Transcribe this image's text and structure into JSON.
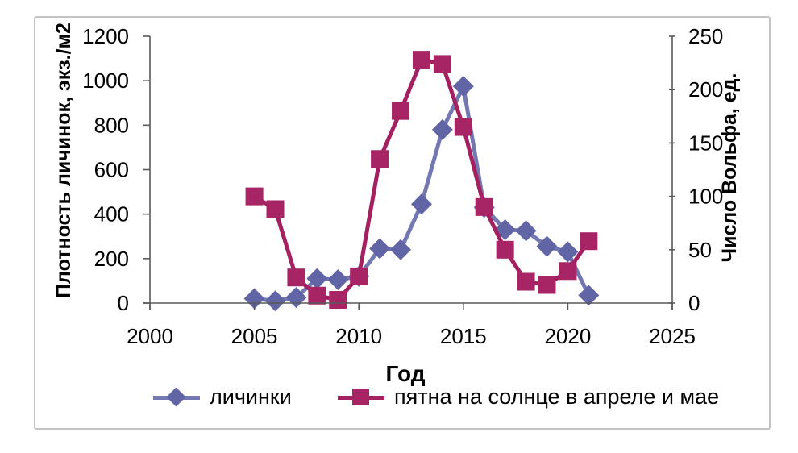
{
  "chart_data": {
    "type": "line",
    "title": "",
    "xlabel": "Год",
    "ylabel_left": "Плотность личинок, экз./м2",
    "ylabel_right": "Число Вольфа, ед.",
    "xlim": [
      2000,
      2025
    ],
    "ylim_left": [
      0,
      1200
    ],
    "ylim_right": [
      0,
      250
    ],
    "x_ticks": [
      2000,
      2005,
      2010,
      2015,
      2020,
      2025
    ],
    "y_left_ticks": [
      0,
      200,
      400,
      600,
      800,
      1000,
      1200
    ],
    "y_right_ticks": [
      0,
      50,
      100,
      150,
      200,
      250
    ],
    "grid": false,
    "legend_position": "bottom",
    "x": [
      2005,
      2006,
      2007,
      2008,
      2009,
      2010,
      2011,
      2012,
      2013,
      2014,
      2015,
      2016,
      2017,
      2018,
      2019,
      2020,
      2021
    ],
    "series": [
      {
        "name": "личинки",
        "axis": "left",
        "marker": "diamond",
        "marker_color": "#6165a6",
        "line_color": "#7478b2",
        "values": [
          20,
          10,
          25,
          110,
          105,
          120,
          245,
          240,
          445,
          780,
          975,
          430,
          330,
          325,
          255,
          230,
          35
        ]
      },
      {
        "name": "пятна на солнце в апреле и мае",
        "axis": "right",
        "marker": "square",
        "marker_color": "#a72465",
        "line_color": "#a32061",
        "values": [
          100,
          88,
          24,
          7,
          3,
          25,
          135,
          180,
          228,
          224,
          165,
          90,
          50,
          20,
          17,
          30,
          58
        ]
      }
    ],
    "style": {
      "axis_color": "#595959",
      "tick_label_color": "#000000",
      "frame_border_color": "#c3c3c3",
      "plot_background": "#ffffff"
    }
  }
}
